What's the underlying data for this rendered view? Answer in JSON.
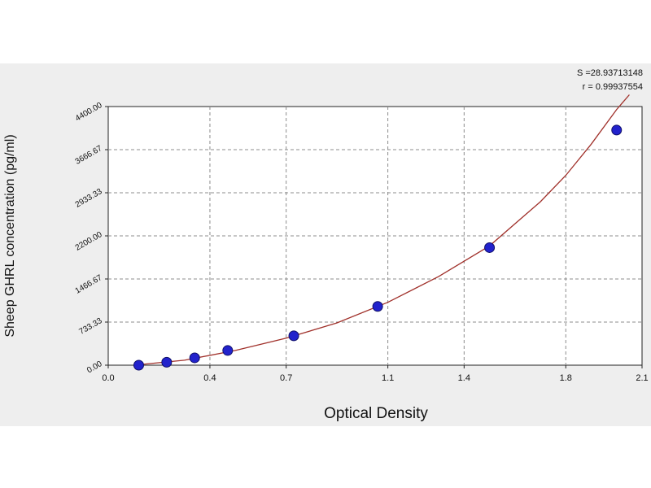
{
  "chart_data": {
    "type": "scatter",
    "title": "",
    "xlabel": "Optical Density",
    "ylabel": "Sheep GHRL concentration (pg/ml)",
    "xlim": [
      0.0,
      2.1
    ],
    "ylim": [
      0.0,
      4400.0
    ],
    "x_ticks": [
      0.0,
      0.4,
      0.7,
      1.1,
      1.4,
      1.8,
      2.1
    ],
    "x_tick_labels": [
      "0.0",
      "0.4",
      "0.7",
      "1.1",
      "1.4",
      "1.8",
      "2.1"
    ],
    "y_ticks": [
      0,
      733.33,
      1466.67,
      2200,
      2933.33,
      3666.67,
      4400
    ],
    "y_tick_labels": [
      "0.00",
      "733.33",
      "1466.67",
      "2200.00",
      "2933.33",
      "3666.67",
      "4400.00"
    ],
    "grid": true,
    "annotations": [
      "S =28.93713148",
      "r = 0.99937554"
    ],
    "series": [
      {
        "kind": "points",
        "x": [
          0.12,
          0.23,
          0.34,
          0.47,
          0.73,
          1.06,
          1.5,
          2.0
        ],
        "y": [
          0,
          50,
          125,
          250,
          500,
          1000,
          2000,
          4000
        ],
        "color": "#2222cc"
      },
      {
        "kind": "fit-curve",
        "x": [
          0.1,
          0.3,
          0.5,
          0.7,
          0.9,
          1.1,
          1.3,
          1.5,
          1.7,
          1.8,
          1.9,
          2.0,
          2.05
        ],
        "y": [
          0,
          85,
          250,
          460,
          720,
          1070,
          1510,
          2030,
          2780,
          3230,
          3760,
          4350,
          4600
        ],
        "color": "#a0302a"
      }
    ]
  }
}
